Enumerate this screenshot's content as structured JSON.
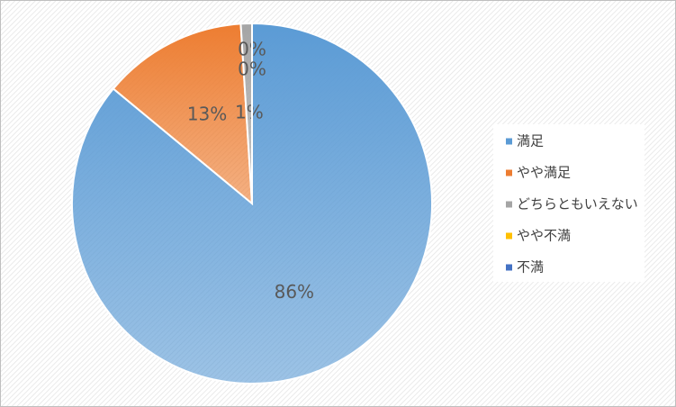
{
  "chart_data": {
    "type": "pie",
    "categories": [
      "満足",
      "やや満足",
      "どちらともいえない",
      "やや不満",
      "不満"
    ],
    "values": [
      86,
      13,
      1,
      0,
      0
    ],
    "value_labels": [
      "86%",
      "13%",
      "1%",
      "0%",
      "0%"
    ],
    "colors": [
      "#5b9bd5",
      "#ed7d31",
      "#a5a5a5",
      "#ffc000",
      "#4472c4"
    ],
    "legend": "right"
  }
}
